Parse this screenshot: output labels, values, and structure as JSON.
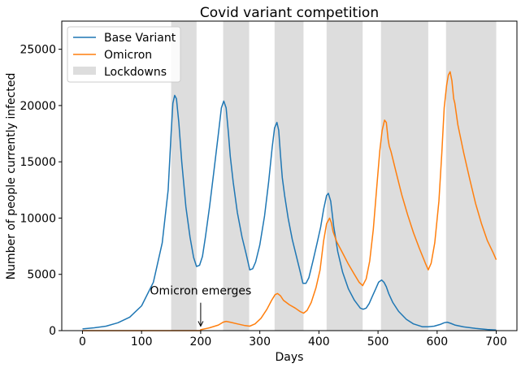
{
  "chart_data": {
    "type": "line",
    "title": "Covid variant competition",
    "xlabel": "Days",
    "ylabel": "Number of people currently infected",
    "xlim": [
      -35,
      735
    ],
    "ylim": [
      0,
      27500
    ],
    "xticks": [
      0,
      100,
      200,
      300,
      400,
      500,
      600,
      700
    ],
    "yticks": [
      0,
      5000,
      10000,
      15000,
      20000,
      25000
    ],
    "grid": false,
    "legend_position": "top-left",
    "lockdowns": {
      "name": "Lockdowns",
      "color": "#dddddd",
      "ranges": [
        [
          150,
          193
        ],
        [
          238,
          282
        ],
        [
          325,
          374
        ],
        [
          413,
          474
        ],
        [
          505,
          585
        ],
        [
          615,
          700
        ]
      ]
    },
    "annotation": {
      "text": "Omicron emerges",
      "x": 200,
      "y": 400,
      "text_x": 200,
      "text_y": 3200
    },
    "series": [
      {
        "name": "Base Variant",
        "color": "#1f77b4",
        "points": [
          [
            0,
            150
          ],
          [
            20,
            250
          ],
          [
            40,
            400
          ],
          [
            60,
            700
          ],
          [
            80,
            1200
          ],
          [
            100,
            2200
          ],
          [
            120,
            4300
          ],
          [
            135,
            7800
          ],
          [
            145,
            12500
          ],
          [
            150,
            17500
          ],
          [
            153,
            20200
          ],
          [
            156,
            20900
          ],
          [
            159,
            20600
          ],
          [
            163,
            18500
          ],
          [
            168,
            15000
          ],
          [
            175,
            11000
          ],
          [
            182,
            8300
          ],
          [
            188,
            6500
          ],
          [
            193,
            5700
          ],
          [
            198,
            5800
          ],
          [
            203,
            6600
          ],
          [
            208,
            8300
          ],
          [
            215,
            11000
          ],
          [
            222,
            14000
          ],
          [
            230,
            17500
          ],
          [
            235,
            19800
          ],
          [
            239,
            20400
          ],
          [
            243,
            19800
          ],
          [
            247,
            17500
          ],
          [
            250,
            15500
          ],
          [
            255,
            13200
          ],
          [
            262,
            10500
          ],
          [
            270,
            8300
          ],
          [
            277,
            6800
          ],
          [
            283,
            5400
          ],
          [
            288,
            5500
          ],
          [
            293,
            6100
          ],
          [
            300,
            7600
          ],
          [
            308,
            10200
          ],
          [
            315,
            13200
          ],
          [
            321,
            16300
          ],
          [
            325,
            18000
          ],
          [
            329,
            18500
          ],
          [
            332,
            17800
          ],
          [
            335,
            15600
          ],
          [
            338,
            13600
          ],
          [
            342,
            12000
          ],
          [
            348,
            10000
          ],
          [
            355,
            8100
          ],
          [
            362,
            6600
          ],
          [
            368,
            5300
          ],
          [
            373,
            4200
          ],
          [
            378,
            4200
          ],
          [
            383,
            4700
          ],
          [
            390,
            6200
          ],
          [
            397,
            7800
          ],
          [
            403,
            9200
          ],
          [
            408,
            10800
          ],
          [
            413,
            12000
          ],
          [
            416,
            12200
          ],
          [
            420,
            11500
          ],
          [
            425,
            9300
          ],
          [
            432,
            7000
          ],
          [
            440,
            5200
          ],
          [
            450,
            3700
          ],
          [
            460,
            2700
          ],
          [
            470,
            2000
          ],
          [
            475,
            1900
          ],
          [
            480,
            2000
          ],
          [
            485,
            2400
          ],
          [
            490,
            3000
          ],
          [
            496,
            3700
          ],
          [
            501,
            4300
          ],
          [
            506,
            4500
          ],
          [
            510,
            4300
          ],
          [
            514,
            3900
          ],
          [
            518,
            3300
          ],
          [
            525,
            2500
          ],
          [
            535,
            1700
          ],
          [
            548,
            1000
          ],
          [
            560,
            600
          ],
          [
            575,
            350
          ],
          [
            585,
            350
          ],
          [
            595,
            400
          ],
          [
            605,
            550
          ],
          [
            612,
            700
          ],
          [
            617,
            750
          ],
          [
            623,
            650
          ],
          [
            630,
            500
          ],
          [
            645,
            330
          ],
          [
            665,
            200
          ],
          [
            685,
            100
          ],
          [
            700,
            50
          ]
        ]
      },
      {
        "name": "Omicron",
        "color": "#ff7f0e",
        "points": [
          [
            0,
            0
          ],
          [
            100,
            0
          ],
          [
            150,
            0
          ],
          [
            199,
            0
          ],
          [
            200,
            80
          ],
          [
            215,
            250
          ],
          [
            230,
            500
          ],
          [
            238,
            750
          ],
          [
            243,
            820
          ],
          [
            250,
            750
          ],
          [
            262,
            600
          ],
          [
            275,
            450
          ],
          [
            283,
            400
          ],
          [
            292,
            600
          ],
          [
            302,
            1100
          ],
          [
            312,
            1900
          ],
          [
            320,
            2700
          ],
          [
            326,
            3200
          ],
          [
            330,
            3300
          ],
          [
            335,
            3100
          ],
          [
            340,
            2700
          ],
          [
            350,
            2300
          ],
          [
            360,
            2000
          ],
          [
            368,
            1700
          ],
          [
            374,
            1550
          ],
          [
            380,
            1800
          ],
          [
            387,
            2500
          ],
          [
            395,
            3800
          ],
          [
            402,
            5400
          ],
          [
            408,
            8000
          ],
          [
            413,
            9500
          ],
          [
            418,
            10000
          ],
          [
            421,
            9600
          ],
          [
            424,
            8800
          ],
          [
            430,
            7900
          ],
          [
            440,
            6900
          ],
          [
            450,
            5900
          ],
          [
            460,
            5000
          ],
          [
            468,
            4300
          ],
          [
            474,
            4000
          ],
          [
            480,
            4600
          ],
          [
            486,
            6200
          ],
          [
            492,
            9000
          ],
          [
            498,
            12800
          ],
          [
            503,
            16000
          ],
          [
            507,
            17800
          ],
          [
            511,
            18700
          ],
          [
            514,
            18500
          ],
          [
            517,
            17000
          ],
          [
            519,
            16400
          ],
          [
            522,
            15900
          ],
          [
            530,
            14200
          ],
          [
            540,
            12100
          ],
          [
            550,
            10300
          ],
          [
            560,
            8700
          ],
          [
            570,
            7300
          ],
          [
            580,
            6000
          ],
          [
            585,
            5400
          ],
          [
            590,
            6000
          ],
          [
            596,
            7800
          ],
          [
            603,
            11500
          ],
          [
            608,
            15800
          ],
          [
            612,
            19800
          ],
          [
            616,
            21800
          ],
          [
            619,
            22700
          ],
          [
            622,
            23000
          ],
          [
            625,
            22200
          ],
          [
            628,
            20600
          ],
          [
            630,
            20200
          ],
          [
            635,
            18300
          ],
          [
            645,
            15800
          ],
          [
            655,
            13500
          ],
          [
            665,
            11300
          ],
          [
            675,
            9500
          ],
          [
            685,
            8000
          ],
          [
            695,
            6900
          ],
          [
            700,
            6300
          ]
        ]
      }
    ]
  }
}
